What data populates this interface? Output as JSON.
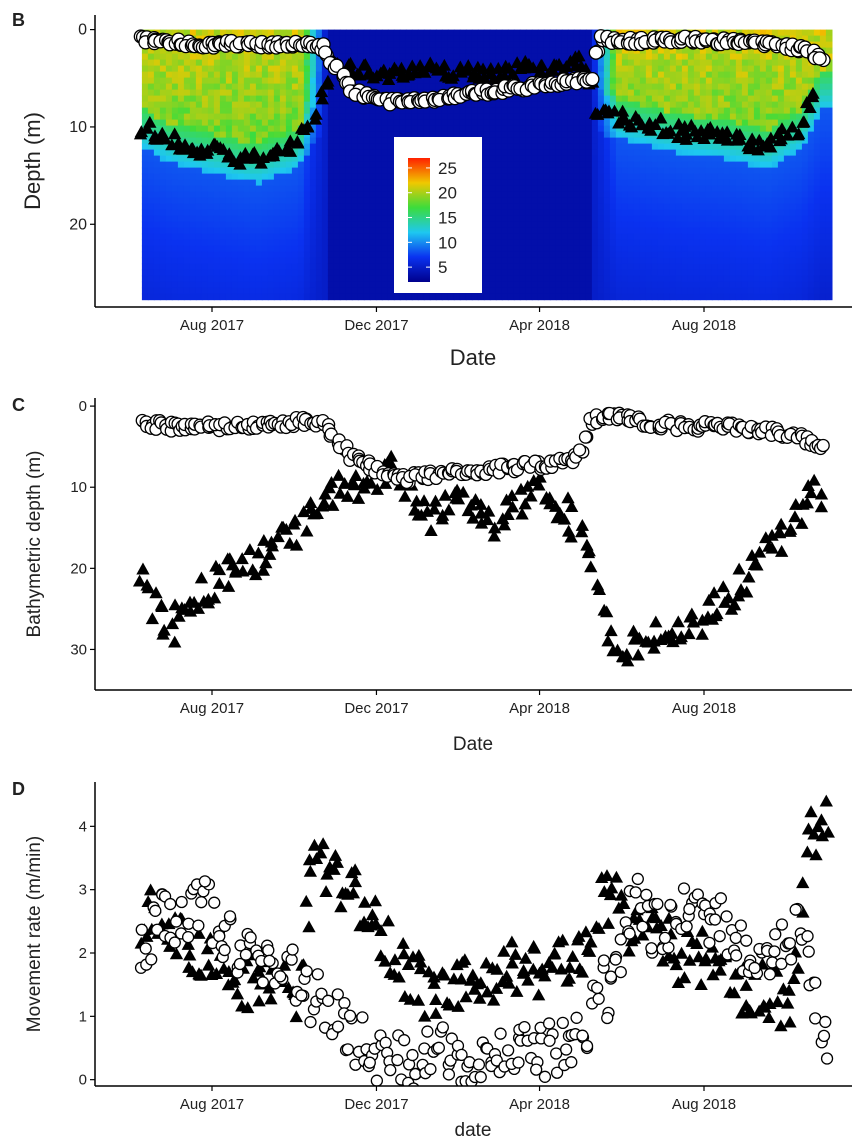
{
  "figure": {
    "panels": [
      "B",
      "C",
      "D"
    ]
  },
  "colors": {
    "triangle": "#000000",
    "circle_fill": "#ffffff",
    "circle_stroke": "#000000",
    "heat_low": "#0000a8",
    "heat_high": "#ff2000"
  },
  "chart_data": [
    {
      "panel": "B",
      "type": "heatmap",
      "xlabel": "Date",
      "ylabel": "Depth (m)",
      "x_ticks": [
        "Aug 2017",
        "Dec 2017",
        "Apr 2018",
        "Aug 2018"
      ],
      "y_ticks": [
        0,
        10,
        20
      ],
      "ylim": [
        -1.5,
        28.5
      ],
      "y_reversed": true,
      "colorbar": {
        "labels": [
          25,
          20,
          15,
          10,
          5
        ],
        "range": [
          2,
          27
        ],
        "placement": "center inside plot"
      },
      "series": [
        {
          "marker": "triangle",
          "x": [
            "2017-06-10",
            "2017-07-01",
            "2017-08-01",
            "2017-09-01",
            "2017-10-01",
            "2017-10-20",
            "2017-10-28",
            "2017-11-15",
            "2017-12-15",
            "2018-01-15",
            "2018-02-15",
            "2018-03-15",
            "2018-04-15",
            "2018-05-05",
            "2018-05-15",
            "2018-06-15",
            "2018-07-15",
            "2018-08-15",
            "2018-09-15",
            "2018-10-10",
            "2018-10-25"
          ],
          "y": [
            10,
            11.5,
            12.5,
            13.5,
            12,
            8,
            4,
            4,
            4.5,
            4.2,
            4.5,
            4.2,
            3.8,
            3.5,
            8.5,
            9.5,
            10.5,
            11,
            12,
            10,
            6
          ]
        },
        {
          "marker": "circle",
          "x": [
            "2017-06-10",
            "2017-07-15",
            "2017-08-15",
            "2017-09-15",
            "2017-10-20",
            "2017-10-28",
            "2017-11-15",
            "2017-12-15",
            "2018-01-15",
            "2018-02-15",
            "2018-03-15",
            "2018-04-15",
            "2018-05-10",
            "2018-05-15",
            "2018-06-15",
            "2018-07-15",
            "2018-08-15",
            "2018-09-15",
            "2018-10-15",
            "2018-10-30"
          ],
          "y": [
            1,
            1.5,
            1.5,
            1.5,
            1.5,
            3,
            6.5,
            7.5,
            7,
            6.5,
            6,
            5.5,
            5,
            1,
            1.2,
            1,
            1.2,
            1.5,
            2,
            3.5
          ]
        }
      ]
    },
    {
      "panel": "C",
      "type": "scatter",
      "xlabel": "Date",
      "ylabel": "Bathymetric depth (m)",
      "x_ticks": [
        "Aug 2017",
        "Dec 2017",
        "Apr 2018",
        "Aug 2018"
      ],
      "y_ticks": [
        0,
        10,
        20,
        30
      ],
      "ylim": [
        -1,
        35
      ],
      "y_reversed": true,
      "series": [
        {
          "marker": "triangle",
          "x": [
            "2017-06-10",
            "2017-06-20",
            "2017-07-01",
            "2017-07-15",
            "2017-08-01",
            "2017-08-15",
            "2017-09-01",
            "2017-09-15",
            "2017-10-01",
            "2017-10-15",
            "2017-11-01",
            "2017-11-15",
            "2017-12-01",
            "2017-12-15",
            "2018-01-01",
            "2018-01-15",
            "2018-02-01",
            "2018-02-15",
            "2018-03-01",
            "2018-03-15",
            "2018-04-01",
            "2018-04-15",
            "2018-05-01",
            "2018-05-10",
            "2018-05-20",
            "2018-06-01",
            "2018-06-15",
            "2018-07-01",
            "2018-07-15",
            "2018-08-01",
            "2018-08-15",
            "2018-09-01",
            "2018-09-15",
            "2018-10-01",
            "2018-10-15",
            "2018-10-30"
          ],
          "y": [
            22,
            25,
            28,
            24,
            22,
            20,
            19,
            17,
            16,
            13,
            11,
            10,
            9,
            8,
            12,
            14,
            11,
            13,
            14,
            12,
            10,
            12,
            15,
            18,
            28,
            29,
            30,
            28,
            27,
            26,
            24,
            22,
            18,
            16,
            12,
            10
          ]
        },
        {
          "marker": "circle",
          "x": [
            "2017-06-10",
            "2017-07-01",
            "2017-08-01",
            "2017-09-01",
            "2017-10-01",
            "2017-10-20",
            "2017-11-01",
            "2017-11-15",
            "2017-12-01",
            "2017-12-15",
            "2018-01-15",
            "2018-02-15",
            "2018-03-15",
            "2018-04-15",
            "2018-05-01",
            "2018-05-10",
            "2018-05-20",
            "2018-06-15",
            "2018-07-15",
            "2018-08-15",
            "2018-09-15",
            "2018-10-15",
            "2018-10-30"
          ],
          "y": [
            2,
            2.5,
            2.5,
            2.5,
            2,
            2,
            4,
            6.5,
            8,
            9,
            8.5,
            8,
            7.5,
            7,
            6,
            2,
            1,
            2,
            2.5,
            2.5,
            3,
            4,
            5
          ]
        }
      ]
    },
    {
      "panel": "D",
      "type": "scatter",
      "xlabel": "date",
      "ylabel": "Movement rate (m/min)",
      "x_ticks": [
        "Aug 2017",
        "Dec 2017",
        "Apr 2018",
        "Aug 2018"
      ],
      "y_ticks": [
        0,
        1,
        2,
        3,
        4
      ],
      "ylim": [
        -0.1,
        4.7
      ],
      "series": [
        {
          "marker": "triangle",
          "x": [
            "2017-06-10",
            "2017-06-25",
            "2017-07-10",
            "2017-07-25",
            "2017-08-10",
            "2017-08-25",
            "2017-09-10",
            "2017-09-25",
            "2017-10-05",
            "2017-10-15",
            "2017-10-25",
            "2017-11-10",
            "2017-11-25",
            "2017-12-10",
            "2017-12-25",
            "2018-01-10",
            "2018-01-25",
            "2018-02-10",
            "2018-02-25",
            "2018-03-10",
            "2018-03-25",
            "2018-04-10",
            "2018-04-25",
            "2018-05-05",
            "2018-05-15",
            "2018-05-25",
            "2018-06-10",
            "2018-06-25",
            "2018-07-10",
            "2018-07-25",
            "2018-08-10",
            "2018-08-25",
            "2018-09-10",
            "2018-09-25",
            "2018-10-05",
            "2018-10-15",
            "2018-10-25",
            "2018-11-01"
          ],
          "y": [
            2.5,
            2.8,
            2.2,
            2.0,
            1.6,
            1.5,
            1.8,
            1.4,
            1.2,
            3.8,
            3.2,
            3.0,
            2.8,
            2.2,
            1.6,
            1.4,
            1.3,
            1.5,
            1.7,
            1.8,
            1.7,
            1.8,
            1.9,
            2.0,
            2.7,
            2.9,
            2.2,
            2.6,
            1.8,
            2.0,
            1.7,
            1.5,
            1.4,
            1.3,
            1.2,
            3.6,
            4.0,
            4.2
          ]
        },
        {
          "marker": "circle",
          "x": [
            "2017-06-10",
            "2017-06-25",
            "2017-07-10",
            "2017-07-25",
            "2017-08-10",
            "2017-08-25",
            "2017-09-10",
            "2017-09-25",
            "2017-10-10",
            "2017-10-25",
            "2017-11-10",
            "2017-11-25",
            "2017-12-10",
            "2017-12-25",
            "2018-01-10",
            "2018-01-25",
            "2018-02-10",
            "2018-02-25",
            "2018-03-10",
            "2018-03-25",
            "2018-04-10",
            "2018-04-25",
            "2018-05-05",
            "2018-05-15",
            "2018-05-25",
            "2018-06-10",
            "2018-06-25",
            "2018-07-10",
            "2018-07-25",
            "2018-08-10",
            "2018-08-25",
            "2018-09-10",
            "2018-09-25",
            "2018-10-10",
            "2018-10-25",
            "2018-11-01"
          ],
          "y": [
            2.0,
            2.6,
            2.4,
            2.8,
            2.3,
            2.0,
            1.9,
            1.8,
            1.3,
            1.2,
            0.8,
            0.5,
            0.3,
            0.3,
            0.35,
            0.4,
            0.4,
            0.4,
            0.4,
            0.4,
            0.45,
            0.5,
            0.6,
            1.5,
            1.2,
            2.8,
            2.4,
            2.6,
            2.7,
            2.5,
            2.2,
            2.0,
            2.1,
            2.3,
            1.2,
            0.6
          ]
        }
      ]
    }
  ]
}
